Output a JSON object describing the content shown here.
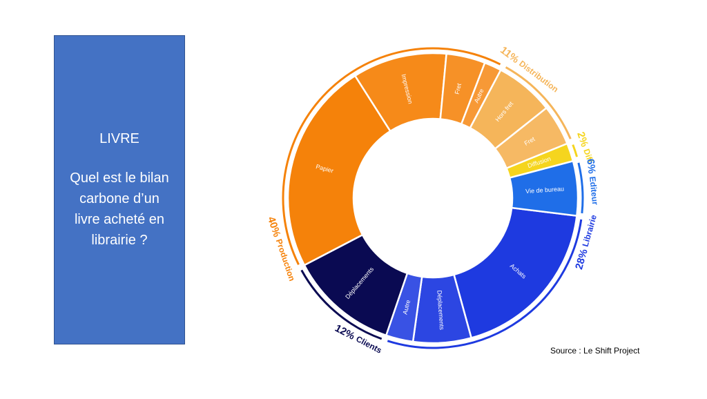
{
  "panel": {
    "title": "LIVRE",
    "question": "Quel est le bilan carbone d’un livre acheté en librairie ?",
    "color": "#4472c4"
  },
  "source": "Source : Le Shift Project",
  "chart_data": {
    "type": "sunburst-donut",
    "unit": "%",
    "groups": [
      {
        "label": "Librairie",
        "percent": "28%",
        "value": 28,
        "color": "#1e3ae0",
        "segments": [
          {
            "label": "Achats",
            "value": 18.6
          },
          {
            "label": "Déplacements",
            "value": 6.4
          },
          {
            "label": "Autre",
            "value": 3.0
          }
        ]
      },
      {
        "label": "Clients",
        "percent": "12%",
        "value": 12,
        "color": "#0a0a52",
        "segments": [
          {
            "label": "Déplacements",
            "value": 12
          }
        ]
      },
      {
        "label": "Production",
        "percent": "40%",
        "value": 40,
        "color": "#f5820a",
        "segments": [
          {
            "label": "Papier",
            "value": 23.4
          },
          {
            "label": "Impression",
            "value": 10.4
          },
          {
            "label": "Fret",
            "value": 4.3
          },
          {
            "label": "Autre",
            "value": 1.9
          }
        ]
      },
      {
        "label": "Distribution",
        "percent": "11%",
        "value": 11,
        "color": "#f5b55a",
        "segments": [
          {
            "label": "Hors fret",
            "value": 6.5
          },
          {
            "label": "Fret",
            "value": 4.5
          }
        ]
      },
      {
        "label": "Diff",
        "percent": "2%",
        "value": 2,
        "color": "#f5d51e",
        "segments": [
          {
            "label": "Diffusion",
            "value": 2
          }
        ]
      },
      {
        "label": "Editeur",
        "percent": "6%",
        "value": 6,
        "color": "#1f6ee8",
        "segments": [
          {
            "label": "Vie de bureau",
            "value": 6
          }
        ]
      }
    ]
  }
}
